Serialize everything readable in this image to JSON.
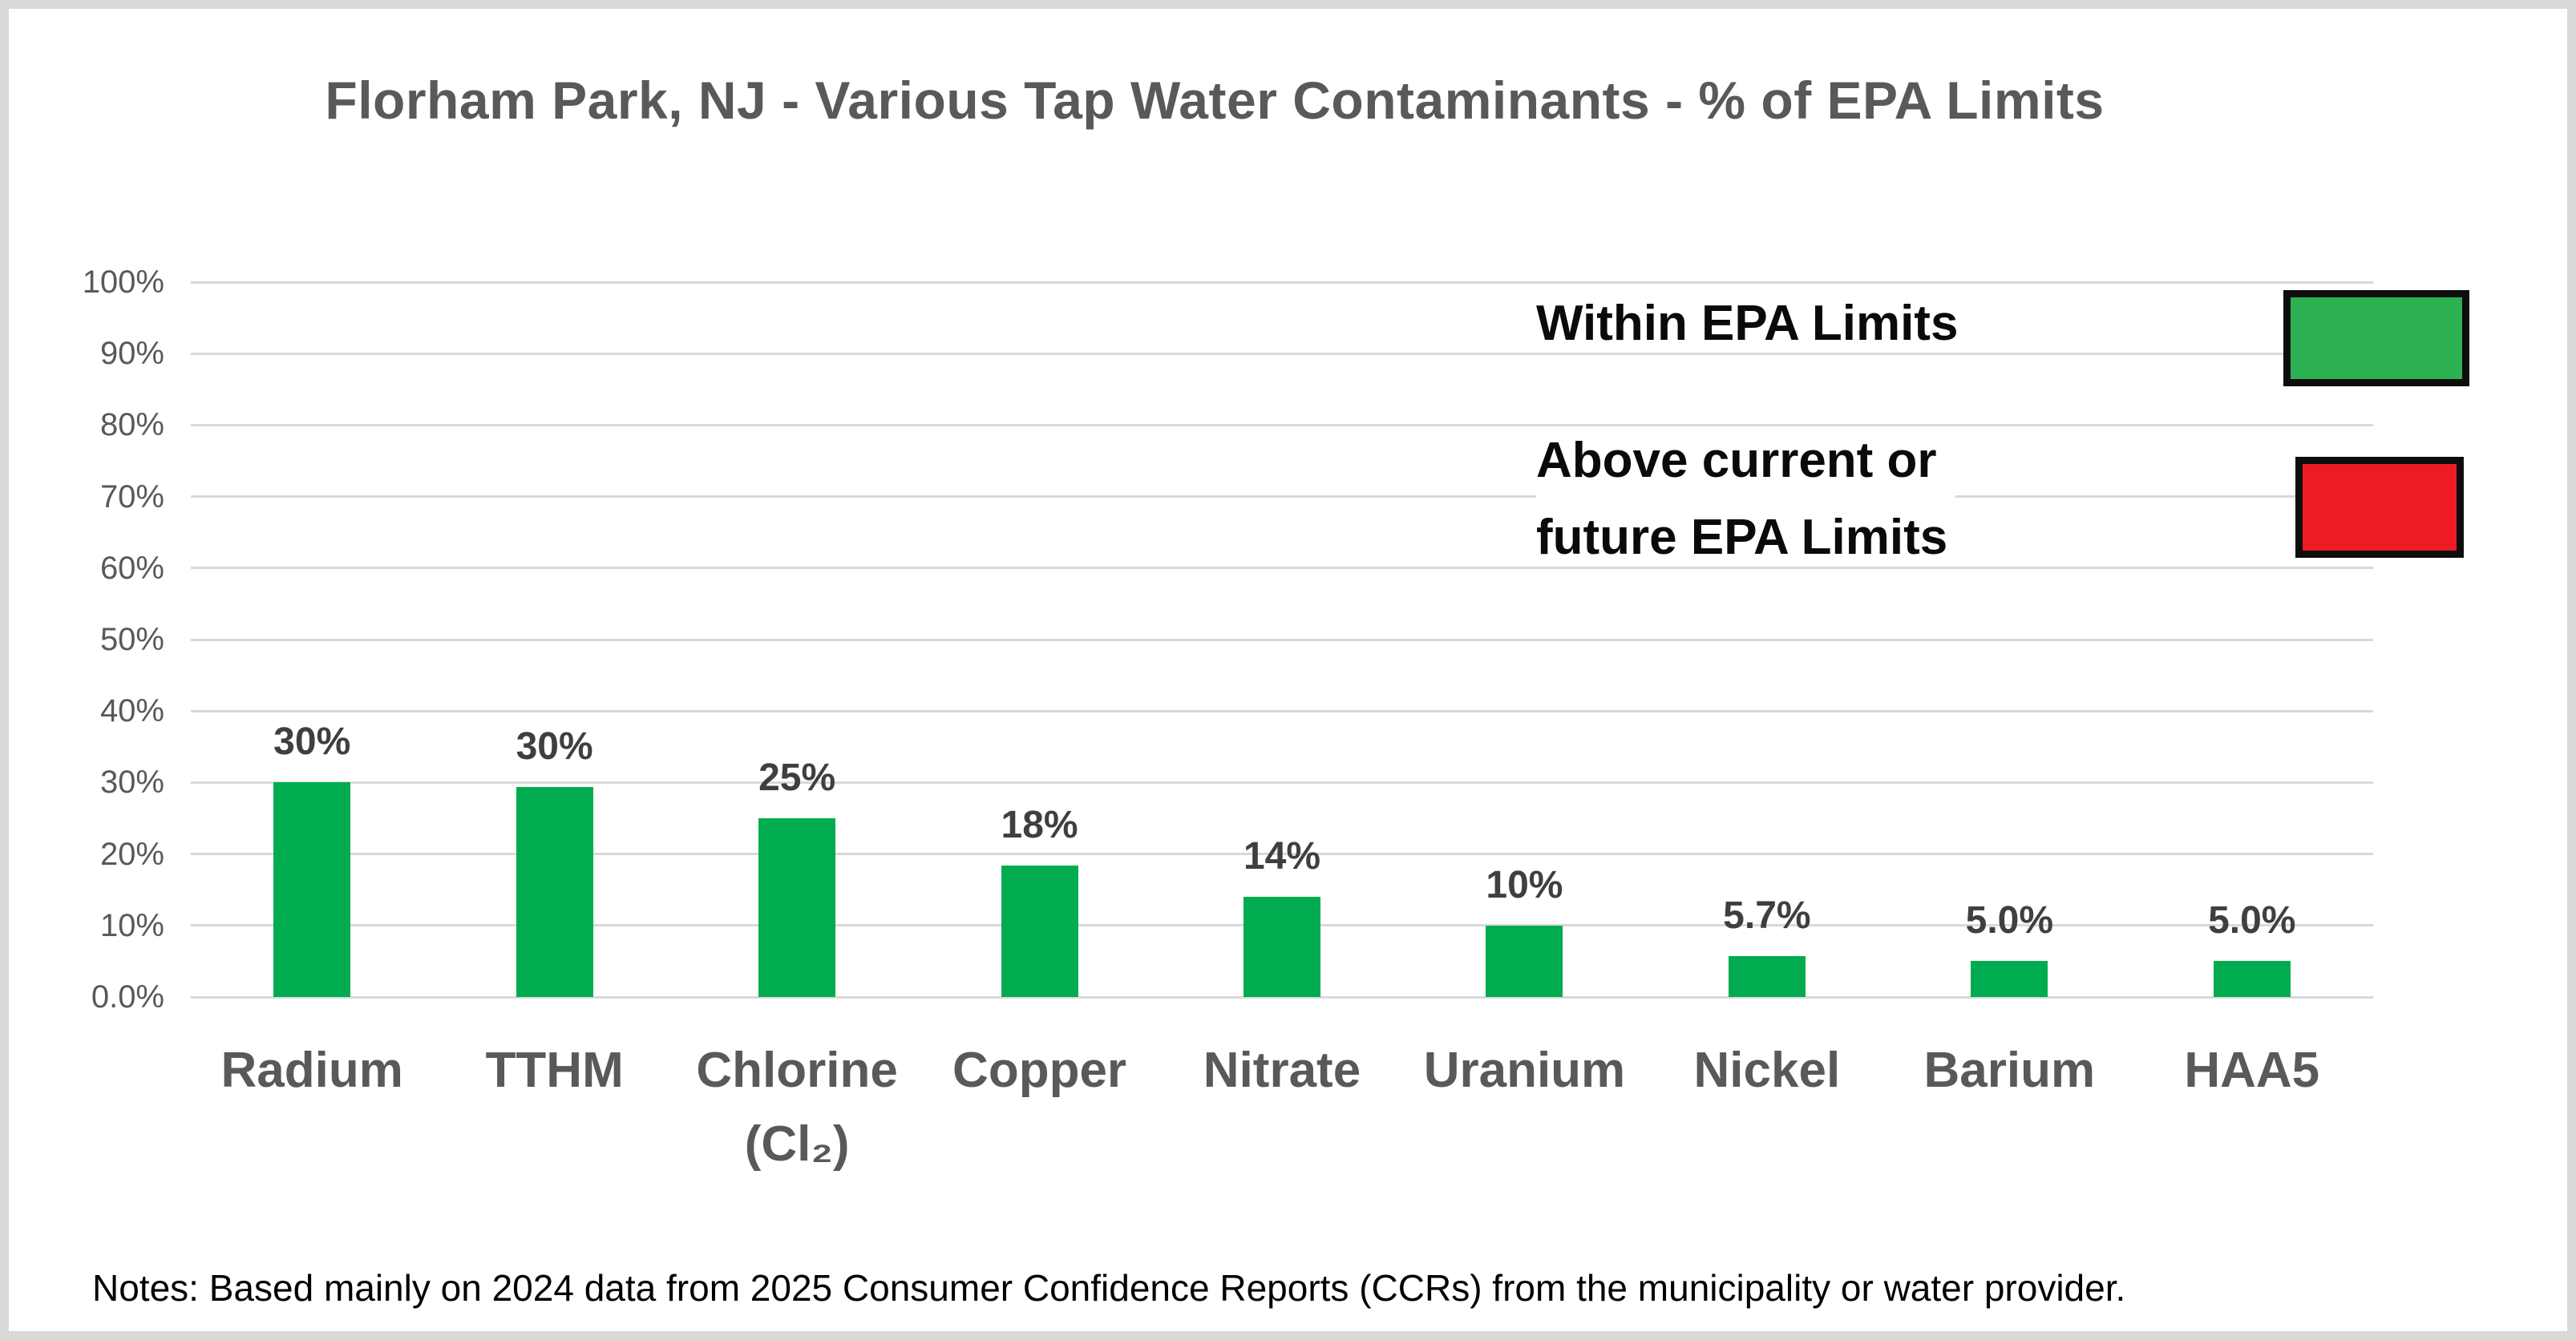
{
  "page": {
    "background": "#ffffff",
    "frame_border_color": "#d9d9d9"
  },
  "chart_data": {
    "type": "bar",
    "title": "Florham Park, NJ - Various Tap Water Contaminants - % of EPA Limits",
    "categories": [
      "Radium",
      "TTHM",
      "Chlorine (Cl₂)",
      "Copper",
      "Nitrate",
      "Uranium",
      "Nickel",
      "Barium",
      "HAA5"
    ],
    "category_display_lines": [
      [
        "Radium"
      ],
      [
        "TTHM"
      ],
      [
        "Chlorine",
        "(Cl₂)"
      ],
      [
        "Copper"
      ],
      [
        "Nitrate"
      ],
      [
        "Uranium"
      ],
      [
        "Nickel"
      ],
      [
        "Barium"
      ],
      [
        "HAA5"
      ]
    ],
    "values": [
      30,
      30,
      25,
      18,
      14,
      10,
      5.7,
      5.0,
      5.0
    ],
    "value_labels": [
      "30%",
      "30%",
      "25%",
      "18%",
      "14%",
      "10%",
      "5.7%",
      "5.0%",
      "5.0%"
    ],
    "render_heights_pct": [
      30,
      29.4,
      25,
      18.4,
      14,
      10,
      5.7,
      5,
      5
    ],
    "bar_color": "#00AC4F",
    "xlabel": "",
    "ylabel": "",
    "ylim": [
      0,
      100
    ],
    "yticks": [
      {
        "label": "100%",
        "value": 100
      },
      {
        "label": "90%",
        "value": 90
      },
      {
        "label": "80%",
        "value": 80
      },
      {
        "label": "70%",
        "value": 70
      },
      {
        "label": "60%",
        "value": 60
      },
      {
        "label": "50%",
        "value": 50
      },
      {
        "label": "40%",
        "value": 40
      },
      {
        "label": "30%",
        "value": 30
      },
      {
        "label": "20%",
        "value": 20
      },
      {
        "label": "10%",
        "value": 10
      },
      {
        "label": "0.0%",
        "value": 0
      }
    ],
    "grid": true,
    "gridline_color": "#d9d9d9",
    "legend_position": "inside upper right",
    "legend": [
      {
        "label_lines": [
          "Within EPA Limits"
        ],
        "color": "#2BB052"
      },
      {
        "label_lines": [
          "Above current or",
          "future EPA Limits"
        ],
        "color": "#ED1C24"
      }
    ]
  },
  "notes": {
    "text": "Notes: Based mainly on 2024 data from 2025 Consumer Confidence Reports (CCRs) from the municipality or water provider."
  },
  "text_colors": {
    "title": "#595959",
    "ticks": "#595959",
    "categories": "#595959",
    "values": "#3f3f3f",
    "legend": "#0a0a0a",
    "notes": "#000000"
  }
}
